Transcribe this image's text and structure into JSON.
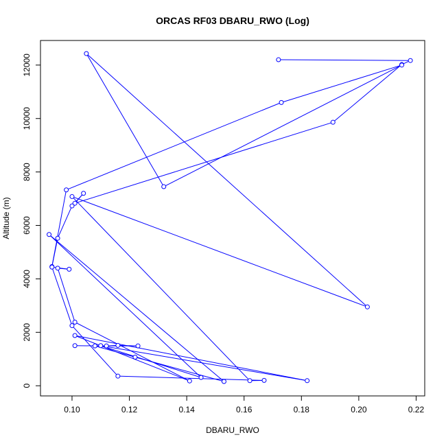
{
  "chart_data": {
    "type": "line",
    "title": "ORCAS RF03 DBARU_RWO (Log)",
    "xlabel": "DBARU_RWO",
    "ylabel": "Altitude (m)",
    "xlim": [
      0.089,
      0.223
    ],
    "ylim": [
      -380,
      12920
    ],
    "x_ticks": [
      0.1,
      0.12,
      0.14,
      0.16,
      0.18,
      0.2,
      0.22
    ],
    "x_tick_labels": [
      "0.10",
      "0.12",
      "0.14",
      "0.16",
      "0.18",
      "0.20",
      "0.22"
    ],
    "y_ticks": [
      0,
      2000,
      4000,
      6000,
      8000,
      10000,
      12000
    ],
    "y_tick_labels": [
      "0",
      "2000",
      "4000",
      "6000",
      "8000",
      "10000",
      "12000"
    ],
    "grid": false,
    "legend": "none",
    "series_color": "#0000ff",
    "series": [
      {
        "x": [
          0.172,
          0.218,
          0.215,
          0.191,
          0.101,
          0.104,
          0.1,
          0.095,
          0.093,
          0.098,
          0.173,
          0.215,
          0.132,
          0.105,
          0.203,
          0.1,
          0.162,
          0.167,
          0.116,
          0.1,
          0.093,
          0.099,
          0.095,
          0.101,
          0.141,
          0.101,
          0.182,
          0.11,
          0.145,
          0.092,
          0.153,
          0.122,
          0.108,
          0.123,
          0.116,
          0.112,
          0.101
        ],
        "y": [
          12200,
          12170,
          12020,
          9860,
          6830,
          7200,
          6730,
          5520,
          4460,
          7330,
          10600,
          12000,
          7450,
          12430,
          2950,
          7080,
          190,
          200,
          360,
          2250,
          4440,
          4360,
          4400,
          2380,
          180,
          1880,
          190,
          1500,
          310,
          5660,
          160,
          1070,
          1490,
          1490,
          1510,
          1490,
          1500
        ]
      }
    ]
  }
}
